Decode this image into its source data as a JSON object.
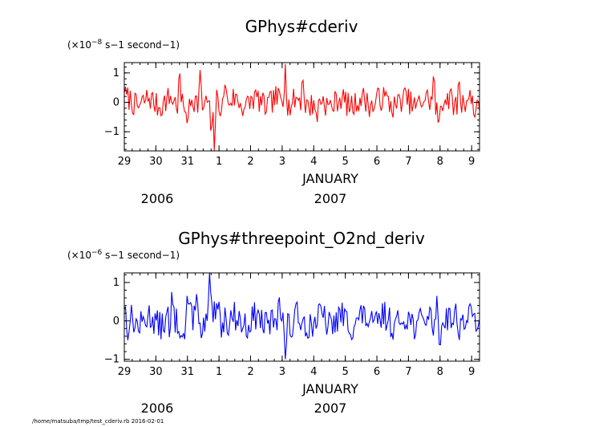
{
  "chart_data": [
    {
      "type": "line",
      "title": "GPhys#cderiv",
      "unit_prefix": "(×10",
      "unit_exp": "−8",
      "unit_suffix": " s−1 second−1)",
      "color": "#ff0000",
      "ylim": [
        -1.65,
        1.35
      ],
      "yticks": [
        -1,
        0,
        1
      ],
      "ytick_labels": [
        "−1",
        "0",
        "1"
      ],
      "xlim": [
        0,
        11.25
      ],
      "xticks": [
        0,
        1,
        2,
        3,
        4,
        5,
        6,
        7,
        8,
        9,
        10,
        11
      ],
      "xtick_labels": [
        "29",
        "30",
        "31",
        "1",
        "2",
        "3",
        "4",
        "5",
        "6",
        "7",
        "8",
        "9"
      ],
      "xlabel": "JANUARY",
      "year_left": "2006",
      "year_right": "2007",
      "seed": 7,
      "amp": 0.42,
      "peaks": [
        [
          0.02,
          0.55
        ],
        [
          1.75,
          1.25
        ],
        [
          2.0,
          -1.0
        ],
        [
          2.4,
          1.1
        ],
        [
          2.75,
          -1.35
        ],
        [
          2.85,
          -1.65
        ],
        [
          3.2,
          0.85
        ],
        [
          5.1,
          1.3
        ],
        [
          5.65,
          1.0
        ],
        [
          6.1,
          -0.85
        ],
        [
          8.05,
          0.55
        ],
        [
          9.8,
          1.1
        ],
        [
          9.95,
          -0.9
        ],
        [
          10.6,
          0.95
        ],
        [
          11.1,
          -0.5
        ],
        [
          11.2,
          0.15
        ]
      ]
    },
    {
      "type": "line",
      "title": "GPhys#threepoint_O2nd_deriv",
      "unit_prefix": "(×10",
      "unit_exp": "−6",
      "unit_suffix": " s−1 second−1)",
      "color": "#0000ff",
      "ylim": [
        -1.05,
        1.25
      ],
      "yticks": [
        -1,
        0,
        1
      ],
      "ytick_labels": [
        "−1",
        "0",
        "1"
      ],
      "xlim": [
        0,
        11.25
      ],
      "xticks": [
        0,
        1,
        2,
        3,
        4,
        5,
        6,
        7,
        8,
        9,
        10,
        11
      ],
      "xtick_labels": [
        "29",
        "30",
        "31",
        "1",
        "2",
        "3",
        "4",
        "5",
        "6",
        "7",
        "8",
        "9"
      ],
      "xlabel": "JANUARY",
      "year_left": "2006",
      "year_right": "2007",
      "seed": 13,
      "amp": 0.38,
      "peaks": [
        [
          0.02,
          0.5
        ],
        [
          0.1,
          -0.6
        ],
        [
          1.45,
          -0.9
        ],
        [
          1.5,
          0.75
        ],
        [
          1.9,
          -0.55
        ],
        [
          2.0,
          0.8
        ],
        [
          2.3,
          0.95
        ],
        [
          2.45,
          -0.6
        ],
        [
          2.7,
          1.25
        ],
        [
          3.0,
          0.5
        ],
        [
          3.2,
          0.4
        ],
        [
          4.9,
          0.8
        ],
        [
          5.1,
          -1.0
        ],
        [
          5.3,
          -0.5
        ],
        [
          9.9,
          0.65
        ],
        [
          10.0,
          -0.75
        ],
        [
          10.5,
          0.45
        ],
        [
          11.2,
          -0.1
        ]
      ]
    }
  ],
  "footer": "/home/matsuba/tmp/test_cderiv.rb  2016-02-01"
}
